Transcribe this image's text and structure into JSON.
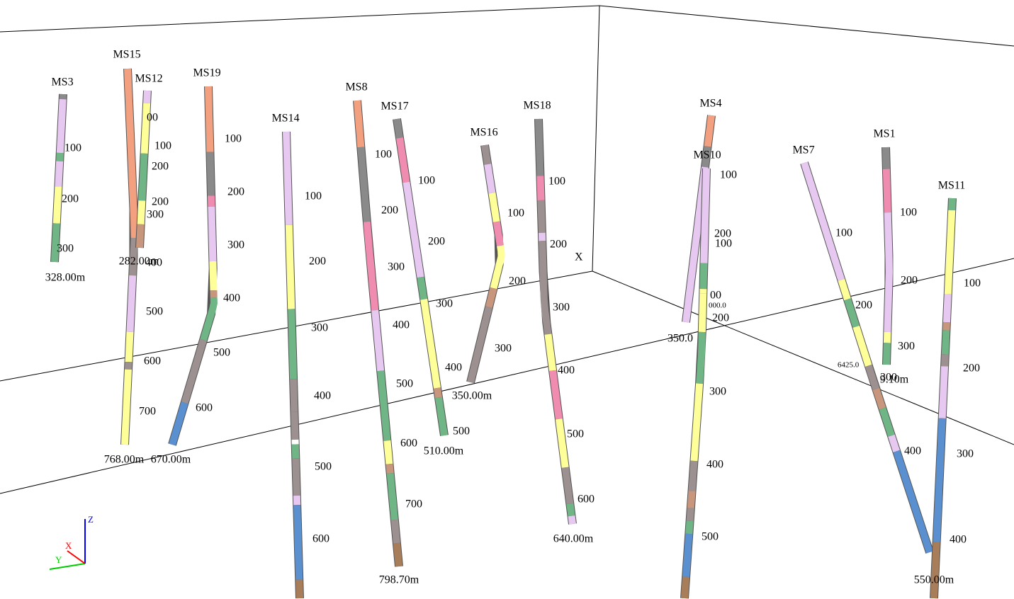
{
  "wells": [
    {
      "name": "MS3",
      "depth_labels": [
        "100",
        "200",
        "300"
      ],
      "end_label": "328.00m"
    },
    {
      "name": "MS15",
      "depth_labels": [
        "100",
        "200",
        "300",
        "400",
        "500",
        "600",
        "700"
      ],
      "end_label": "768.00m"
    },
    {
      "name": "MS12",
      "depth_labels": [
        "00",
        "200"
      ],
      "end_label": "282.00m"
    },
    {
      "name": "MS19",
      "depth_labels": [
        "100",
        "200",
        "300",
        "400",
        "500",
        "600"
      ],
      "end_label": "670.00m"
    },
    {
      "name": "MS14",
      "depth_labels": [
        "100",
        "200",
        "300",
        "400",
        "500",
        "600"
      ]
    },
    {
      "name": "MS8",
      "depth_labels": [
        "100",
        "200",
        "300",
        "400",
        "500",
        "600",
        "700"
      ],
      "end_label": "798.70m"
    },
    {
      "name": "MS17",
      "depth_labels": [
        "100",
        "200",
        "300",
        "400",
        "500"
      ],
      "end_label": "510.00m"
    },
    {
      "name": "MS16",
      "depth_labels": [
        "100",
        "200",
        "300"
      ],
      "end_label": "350.00m"
    },
    {
      "name": "MS18",
      "depth_labels": [
        "100",
        "200",
        "300",
        "400",
        "500",
        "600"
      ],
      "end_label": "640.00m"
    },
    {
      "name": "MS4",
      "depth_labels": [
        "100",
        "200",
        "00"
      ],
      "end_label": "350.0"
    },
    {
      "name": "MS10",
      "depth_labels": [
        "100",
        "200",
        "300",
        "400",
        "500"
      ]
    },
    {
      "name": "MS7",
      "depth_labels": [
        "100",
        "200",
        "300",
        "400"
      ]
    },
    {
      "name": "MS1",
      "depth_labels": [
        "100",
        "200",
        "300"
      ],
      "end_label": "9.10m"
    },
    {
      "name": "MS11",
      "depth_labels": [
        "100",
        "200",
        "300",
        "400"
      ],
      "end_label": "550.00m"
    }
  ],
  "markers": {
    "x_marker": "X",
    "coord_1": "000.0",
    "coord_2": "6425.0"
  },
  "gizmo": {
    "z": "Z",
    "x": "X",
    "y": "Y"
  }
}
